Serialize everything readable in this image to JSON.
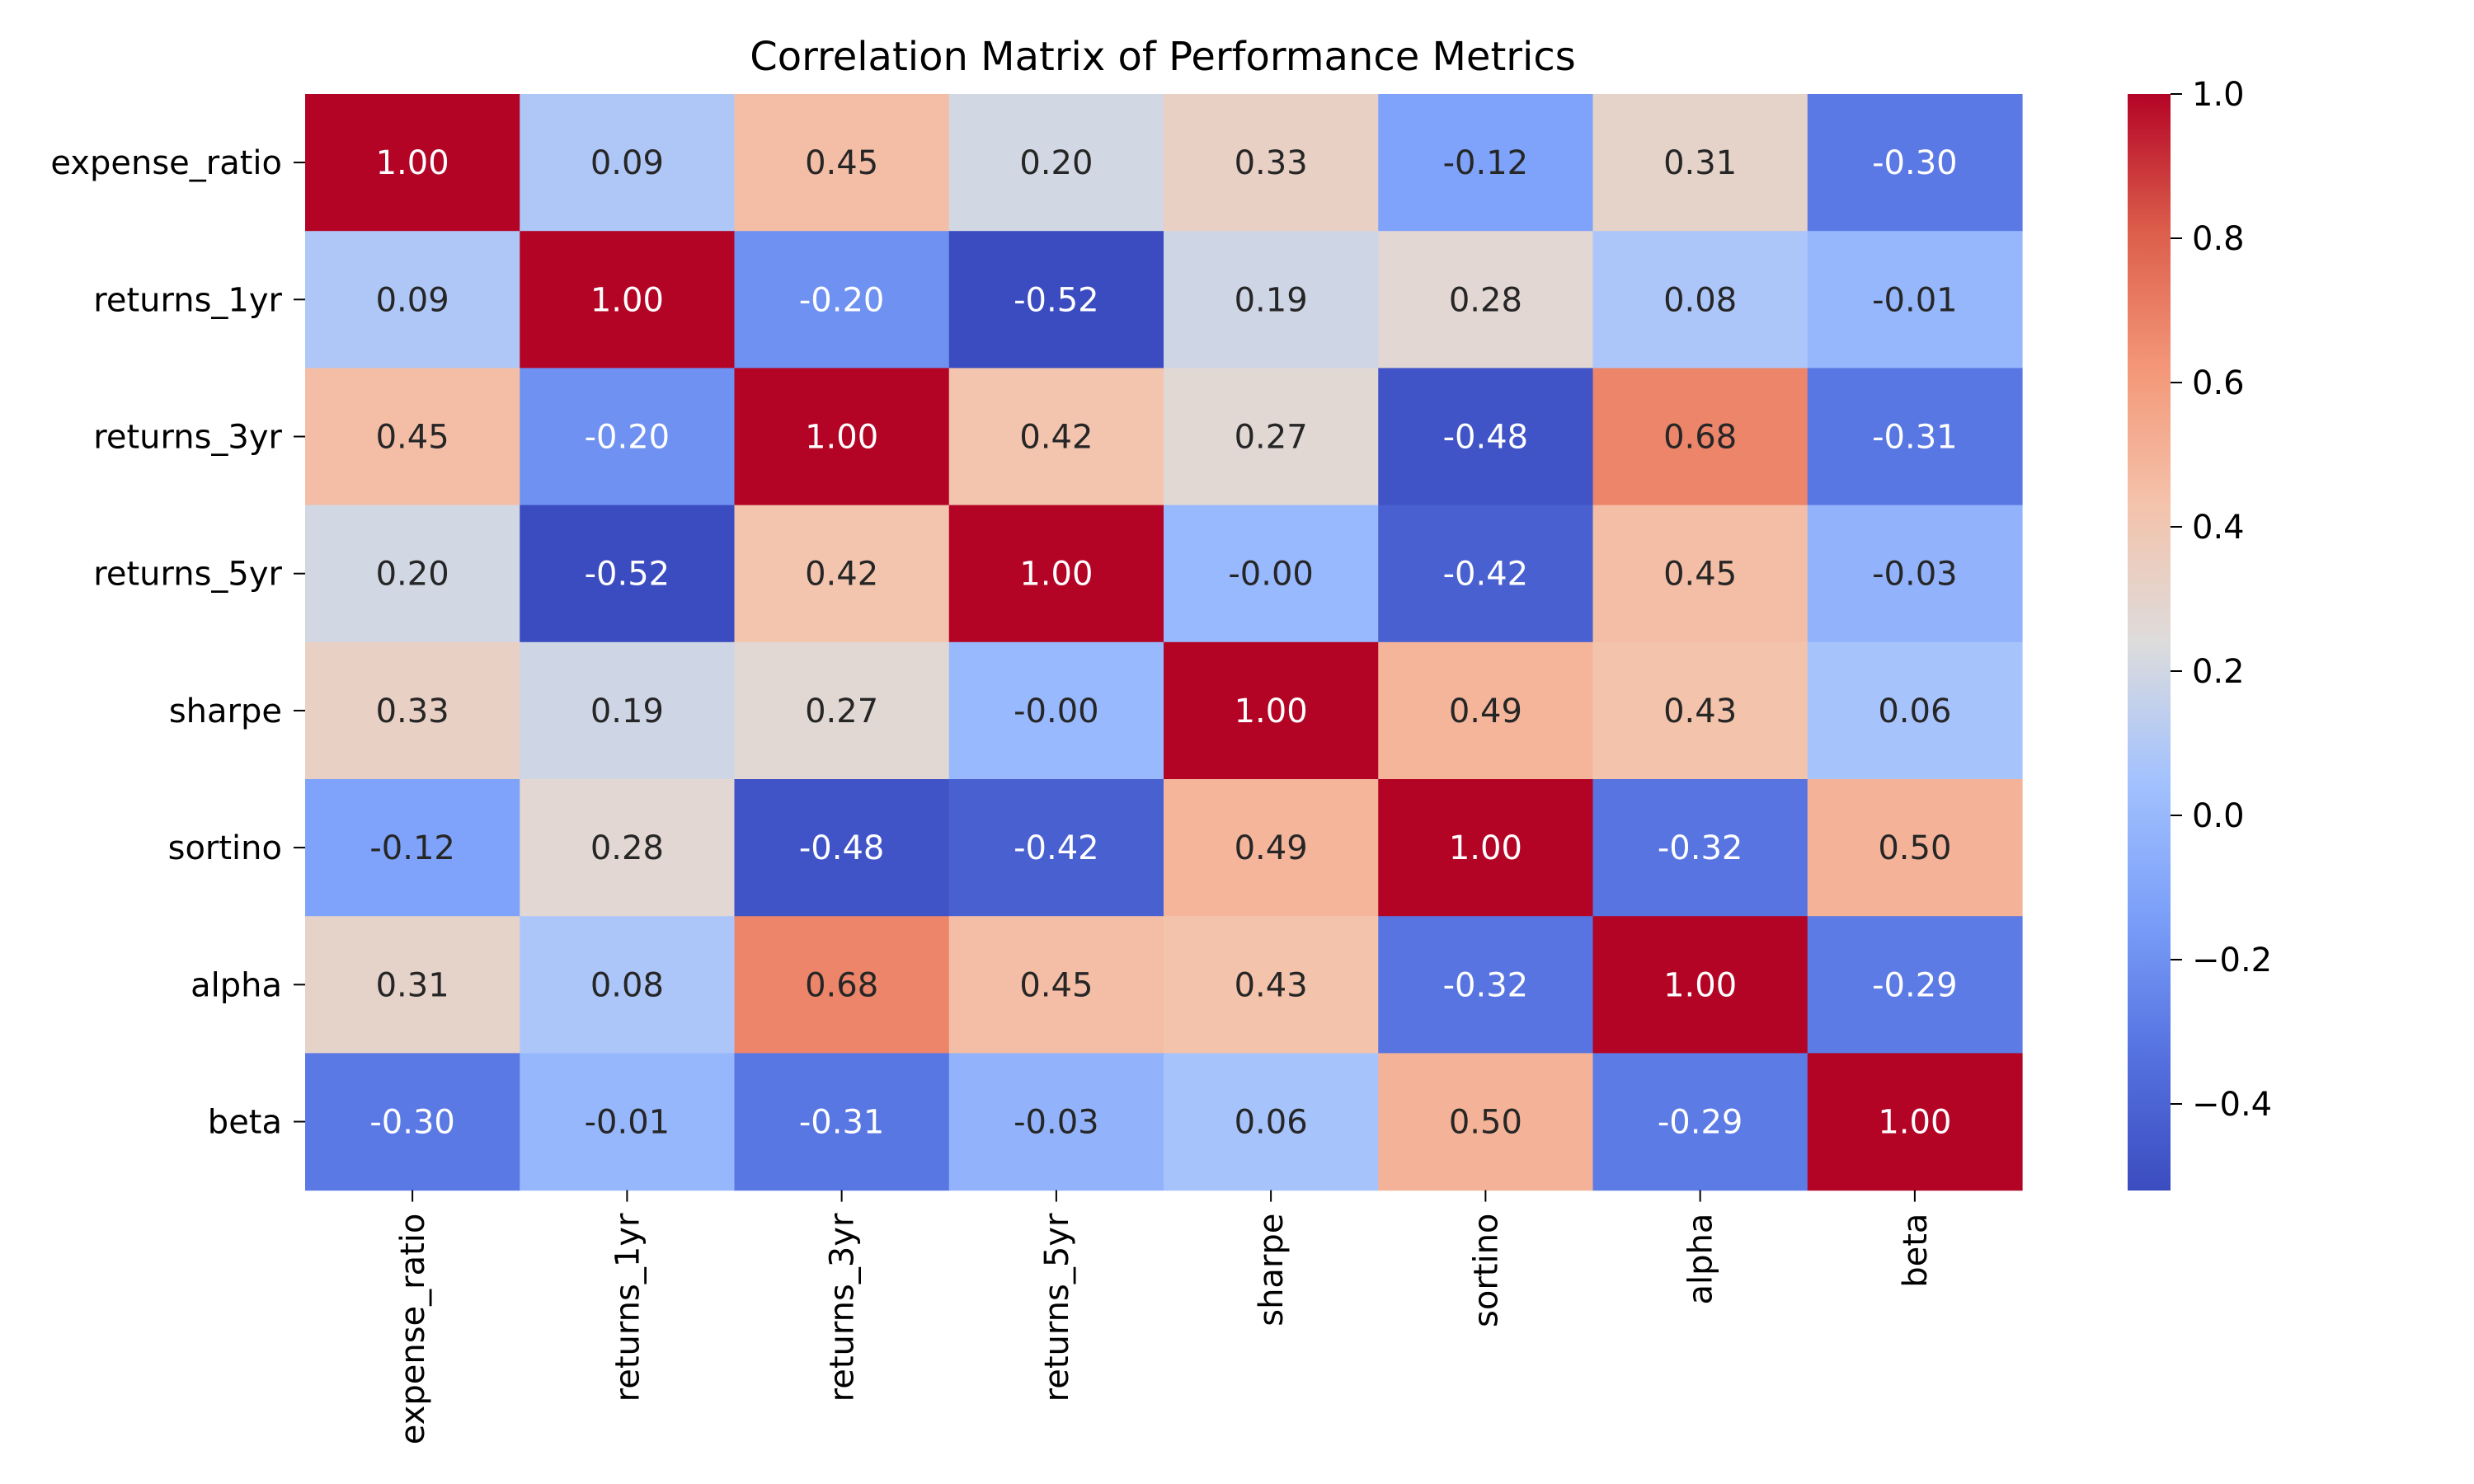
{
  "chart_data": {
    "type": "heatmap",
    "title": "Correlation Matrix of Performance Metrics",
    "xlabel": "",
    "ylabel": "",
    "row_labels": [
      "expense_ratio",
      "returns_1yr",
      "returns_3yr",
      "returns_5yr",
      "sharpe",
      "sortino",
      "alpha",
      "beta"
    ],
    "col_labels": [
      "expense_ratio",
      "returns_1yr",
      "returns_3yr",
      "returns_5yr",
      "sharpe",
      "sortino",
      "alpha",
      "beta"
    ],
    "values": [
      [
        1.0,
        0.09,
        0.45,
        0.2,
        0.33,
        -0.12,
        0.31,
        -0.3
      ],
      [
        0.09,
        1.0,
        -0.2,
        -0.52,
        0.19,
        0.28,
        0.08,
        -0.01
      ],
      [
        0.45,
        -0.2,
        1.0,
        0.42,
        0.27,
        -0.48,
        0.68,
        -0.31
      ],
      [
        0.2,
        -0.52,
        0.42,
        1.0,
        -0.0,
        -0.42,
        0.45,
        -0.03
      ],
      [
        0.33,
        0.19,
        0.27,
        -0.0,
        1.0,
        0.49,
        0.43,
        0.06
      ],
      [
        -0.12,
        0.28,
        -0.48,
        -0.42,
        0.49,
        1.0,
        -0.32,
        0.5
      ],
      [
        0.31,
        0.08,
        0.68,
        0.45,
        0.43,
        -0.32,
        1.0,
        -0.29
      ],
      [
        -0.3,
        -0.01,
        -0.31,
        -0.03,
        0.06,
        0.5,
        -0.29,
        1.0
      ]
    ],
    "cell_labels": [
      [
        "1.00",
        "0.09",
        "0.45",
        "0.20",
        "0.33",
        "-0.12",
        "0.31",
        "-0.30"
      ],
      [
        "0.09",
        "1.00",
        "-0.20",
        "-0.52",
        "0.19",
        "0.28",
        "0.08",
        "-0.01"
      ],
      [
        "0.45",
        "-0.20",
        "1.00",
        "0.42",
        "0.27",
        "-0.48",
        "0.68",
        "-0.31"
      ],
      [
        "0.20",
        "-0.52",
        "0.42",
        "1.00",
        "-0.00",
        "-0.42",
        "0.45",
        "-0.03"
      ],
      [
        "0.33",
        "0.19",
        "0.27",
        "-0.00",
        "1.00",
        "0.49",
        "0.43",
        "0.06"
      ],
      [
        "-0.12",
        "0.28",
        "-0.48",
        "-0.42",
        "0.49",
        "1.00",
        "-0.32",
        "0.50"
      ],
      [
        "0.31",
        "0.08",
        "0.68",
        "0.45",
        "0.43",
        "-0.32",
        "1.00",
        "-0.29"
      ],
      [
        "-0.30",
        "-0.01",
        "-0.31",
        "-0.03",
        "0.06",
        "0.50",
        "-0.29",
        "1.00"
      ]
    ],
    "colormap": "coolwarm",
    "colorbar": {
      "range": [
        -0.52,
        1.0
      ],
      "ticks": [
        1.0,
        0.8,
        0.6,
        0.4,
        0.2,
        0.0,
        -0.2,
        -0.4
      ],
      "tick_labels": [
        "1.0",
        "0.8",
        "0.6",
        "0.4",
        "0.2",
        "0.0",
        "−0.2",
        "−0.4"
      ]
    },
    "legend": "none",
    "grid": false
  }
}
